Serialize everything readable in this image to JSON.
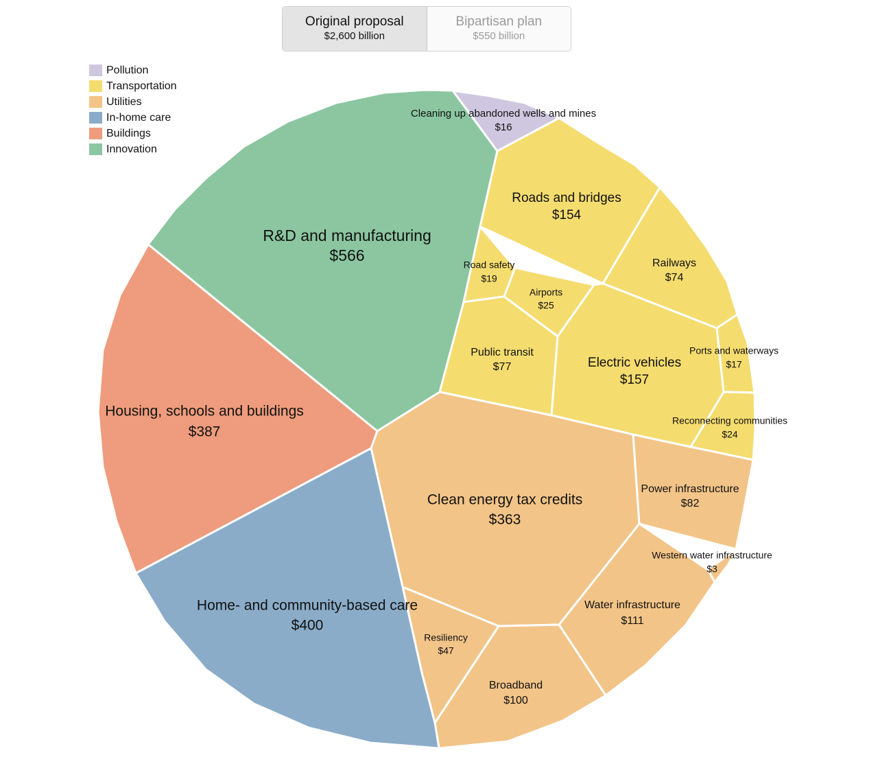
{
  "toggle": {
    "options": [
      {
        "label": "Original proposal",
        "amount": "$2,600 billion",
        "active": true
      },
      {
        "label": "Bipartisan plan",
        "amount": "$550 billion",
        "active": false
      }
    ]
  },
  "legend": [
    {
      "label": "Pollution",
      "color": "#cfc7df"
    },
    {
      "label": "Transportation",
      "color": "#f4dc6f"
    },
    {
      "label": "Utilities",
      "color": "#f2c488"
    },
    {
      "label": "In-home care",
      "color": "#8aacc8"
    },
    {
      "label": "Buildings",
      "color": "#ee9c7d"
    },
    {
      "label": "Innovation",
      "color": "#8bc6a0"
    }
  ],
  "chart_data": {
    "type": "voronoi-treemap",
    "units": "$ billion",
    "categories": [
      {
        "name": "Innovation",
        "items": [
          {
            "label": "R&D and manufacturing",
            "value": 566,
            "display": "$566"
          }
        ]
      },
      {
        "name": "Pollution",
        "items": [
          {
            "label": "Cleaning up abandoned wells and mines",
            "value": 16,
            "display": "$16"
          }
        ]
      },
      {
        "name": "Transportation",
        "items": [
          {
            "label": "Roads and bridges",
            "value": 154,
            "display": "$154"
          },
          {
            "label": "Railways",
            "value": 74,
            "display": "$74"
          },
          {
            "label": "Road safety",
            "value": 19,
            "display": "$19"
          },
          {
            "label": "Airports",
            "value": 25,
            "display": "$25"
          },
          {
            "label": "Public transit",
            "value": 77,
            "display": "$77"
          },
          {
            "label": "Electric vehicles",
            "value": 157,
            "display": "$157"
          },
          {
            "label": "Ports and waterways",
            "value": 17,
            "display": "$17"
          },
          {
            "label": "Reconnecting communities",
            "value": 24,
            "display": "$24"
          }
        ]
      },
      {
        "name": "Buildings",
        "items": [
          {
            "label": "Housing, schools and buildings",
            "value": 387,
            "display": "$387"
          }
        ]
      },
      {
        "name": "Utilities",
        "items": [
          {
            "label": "Clean energy tax credits",
            "value": 363,
            "display": "$363"
          },
          {
            "label": "Power infrastructure",
            "value": 82,
            "display": "$82"
          },
          {
            "label": "Western water infrastructure",
            "value": 3,
            "display": "$3"
          },
          {
            "label": "Water infrastructure",
            "value": 111,
            "display": "$111"
          },
          {
            "label": "Broadband",
            "value": 100,
            "display": "$100"
          },
          {
            "label": "Resiliency",
            "value": 47,
            "display": "$47"
          }
        ]
      },
      {
        "name": "In-home care",
        "items": [
          {
            "label": "Home- and community-based care",
            "value": 400,
            "display": "$400"
          }
        ]
      }
    ]
  }
}
